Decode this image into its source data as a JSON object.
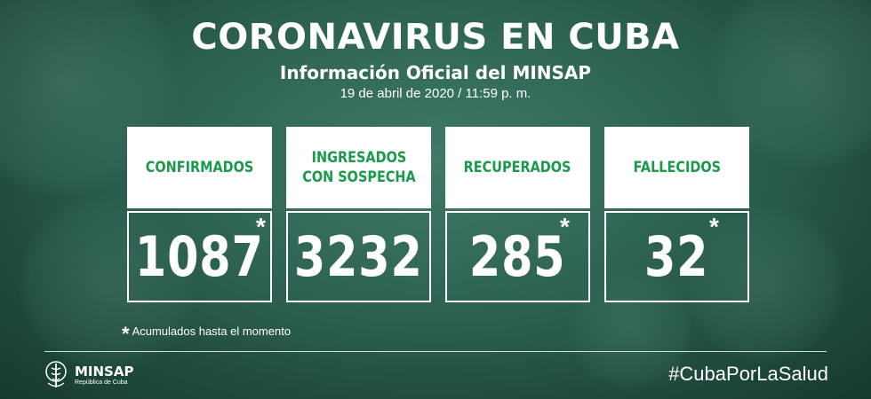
{
  "header": {
    "title": "CORONAVIRUS EN CUBA",
    "subtitle": "Información Oficial del MINSAP",
    "date": "19 de abril de 2020 / 11:59 p. m."
  },
  "cards": [
    {
      "label": "CONFIRMADOS",
      "value": "1087",
      "asterisk": "*"
    },
    {
      "label": "INGRESADOS\nCON SOSPECHA",
      "value": "3232",
      "asterisk": ""
    },
    {
      "label": "RECUPERADOS",
      "value": "285",
      "asterisk": "*"
    },
    {
      "label": "FALLECIDOS",
      "value": "32",
      "asterisk": "*"
    }
  ],
  "footnote": {
    "star": "*",
    "text": "Acumulados hasta el momento"
  },
  "footer": {
    "logo_name": "MINSAP",
    "logo_sub": "República de Cuba",
    "hashtag": "#CubaPorLaSalud"
  },
  "colors": {
    "accent_green": "#1a9a4a",
    "background": "#2d6252",
    "text": "#ffffff"
  }
}
